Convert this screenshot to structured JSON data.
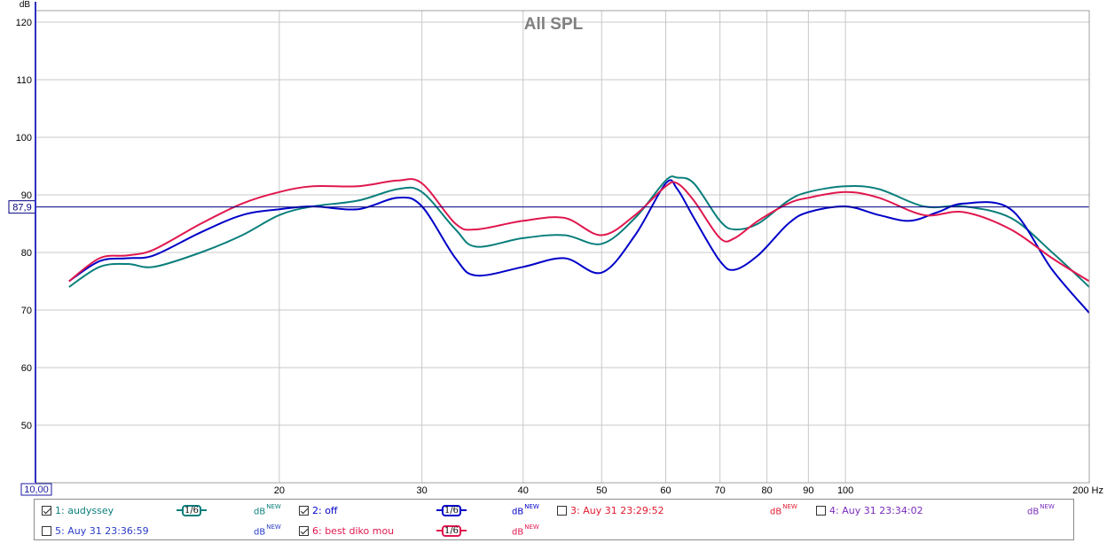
{
  "chart_data": {
    "type": "line",
    "title": "All SPL",
    "ylabel": "dB",
    "xlabel": "Hz",
    "x_scale": "log",
    "xlim": [
      10,
      200
    ],
    "ylim": [
      40,
      122
    ],
    "grid": true,
    "y_ticks": [
      50,
      60,
      70,
      80,
      90,
      100,
      110,
      120
    ],
    "x_ticks": [
      {
        "value": 10,
        "label": "10,00"
      },
      {
        "value": 20,
        "label": "20"
      },
      {
        "value": 30,
        "label": "30"
      },
      {
        "value": 40,
        "label": "40"
      },
      {
        "value": 50,
        "label": "50"
      },
      {
        "value": 60,
        "label": "60"
      },
      {
        "value": 70,
        "label": "70"
      },
      {
        "value": 80,
        "label": "80"
      },
      {
        "value": 90,
        "label": "90"
      },
      {
        "value": 100,
        "label": "100"
      },
      {
        "value": 200,
        "label": "200 Hz"
      }
    ],
    "reference_line": {
      "value": 87.9,
      "label": "87,9",
      "color": "#000080"
    },
    "series": [
      {
        "name": "1: audyssey",
        "color": "#0a7f7c",
        "x": [
          11,
          12,
          13,
          14,
          16,
          18,
          20,
          22,
          25,
          28,
          30,
          33,
          35,
          40,
          45,
          50,
          55,
          60,
          62,
          65,
          70,
          73,
          78,
          85,
          90,
          100,
          110,
          125,
          140,
          160,
          180,
          200
        ],
        "y": [
          74,
          77.5,
          78,
          77.5,
          80,
          83,
          86.5,
          88,
          89,
          91,
          90.5,
          84,
          81,
          82.5,
          83,
          81.5,
          86,
          92.5,
          93,
          92,
          85.5,
          84,
          85,
          89,
          90.5,
          91.5,
          91,
          88,
          88,
          86,
          80,
          74
        ]
      },
      {
        "name": "2: off",
        "color": "#0000c8",
        "x": [
          11,
          12,
          13,
          14,
          16,
          18,
          20,
          22,
          25,
          28,
          30,
          33,
          35,
          40,
          45,
          50,
          55,
          60,
          62,
          65,
          70,
          73,
          78,
          85,
          90,
          100,
          110,
          120,
          130,
          140,
          160,
          180,
          200
        ],
        "y": [
          75,
          78.5,
          79,
          79.5,
          83.5,
          86.5,
          87.5,
          88,
          87.5,
          89.5,
          88,
          79,
          76,
          77.5,
          79,
          76.5,
          83,
          92,
          91,
          86,
          78.5,
          77,
          79.5,
          85,
          87,
          88,
          86.5,
          85.5,
          87,
          88.5,
          87.5,
          77,
          69.5
        ]
      },
      {
        "name": "6: best diko mou",
        "color": "#e0174e",
        "x": [
          11,
          12,
          13,
          14,
          16,
          18,
          20,
          22,
          25,
          28,
          30,
          33,
          35,
          40,
          45,
          50,
          55,
          60,
          62,
          65,
          70,
          73,
          78,
          85,
          90,
          100,
          110,
          125,
          140,
          160,
          180,
          200
        ],
        "y": [
          75,
          79,
          79.5,
          80.5,
          85,
          88.5,
          90.5,
          91.5,
          91.5,
          92.5,
          92,
          85,
          84,
          85.5,
          86,
          83,
          86.5,
          91.5,
          92,
          89,
          82.5,
          82.5,
          85.5,
          88.5,
          89.5,
          90.5,
          89.5,
          86.5,
          87,
          84,
          79,
          75
        ]
      }
    ]
  },
  "legend": {
    "items": [
      {
        "label": "1: audyssey",
        "checked": true,
        "color": "#0a7f7c",
        "smoothing": "1/6",
        "db": "dB",
        "db_sup": "NEW"
      },
      {
        "label": "2: off",
        "checked": true,
        "color": "#0000c8",
        "smoothing": "1/6",
        "db": "dB",
        "db_sup": "NEW"
      },
      {
        "label": "3: Auy 31 23:29:52",
        "checked": false,
        "color": "#e01a2e",
        "db": "dB",
        "db_sup": "NEW"
      },
      {
        "label": "4: Auy 31 23:34:02",
        "checked": false,
        "color": "#7a2bbd",
        "db": "dB",
        "db_sup": "NEW"
      },
      {
        "label": "5: Auy 31 23:36:59",
        "checked": false,
        "color": "#2a3cc8",
        "db": "dB",
        "db_sup": "NEW"
      },
      {
        "label": "6: best diko mou",
        "checked": true,
        "color": "#e0174e",
        "smoothing": "1/6",
        "db": "dB",
        "db_sup": "NEW"
      }
    ]
  }
}
